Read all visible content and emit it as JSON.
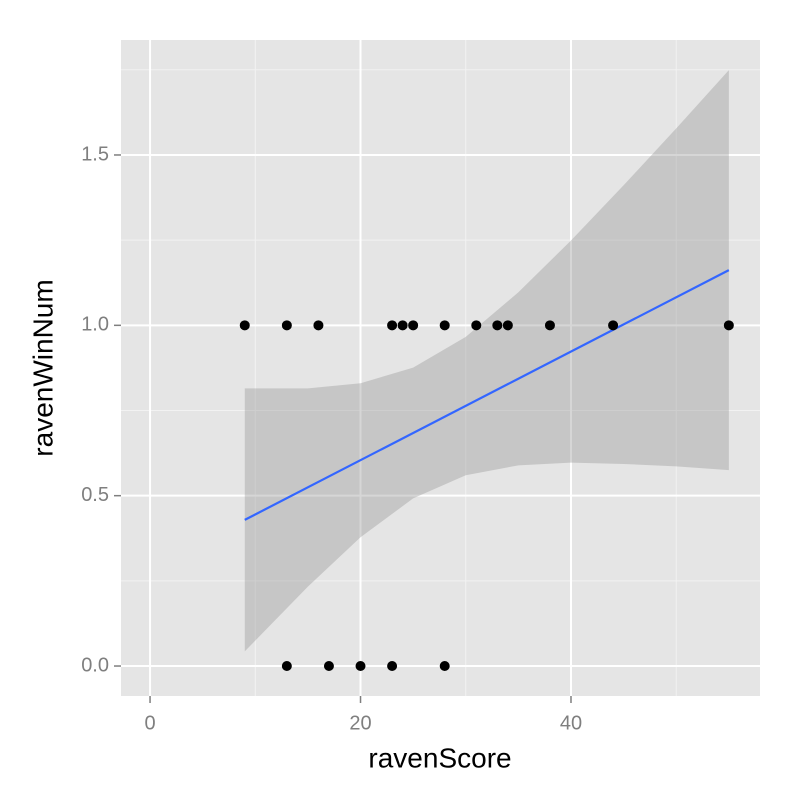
{
  "chart_data": {
    "type": "scatter",
    "x_label": "ravenScore",
    "y_label": "ravenWinNum",
    "x": [
      9,
      13,
      16,
      23,
      24,
      25,
      28,
      31,
      33,
      34,
      38,
      44,
      55,
      13,
      17,
      20,
      23,
      28
    ],
    "values": [
      1,
      1,
      1,
      1,
      1,
      1,
      1,
      1,
      1,
      1,
      1,
      1,
      1,
      0,
      0,
      0,
      0,
      0
    ],
    "color": "#000000",
    "smooth": {
      "color": "#3366FF",
      "x": [
        9,
        55
      ],
      "values": [
        0.429,
        1.162
      ]
    },
    "band": {
      "color": "#999999",
      "x": [
        9,
        15,
        20,
        25,
        30,
        35,
        40,
        45,
        50,
        55
      ],
      "lower": [
        0.043,
        0.233,
        0.378,
        0.492,
        0.56,
        0.589,
        0.597,
        0.593,
        0.586,
        0.575
      ],
      "upper": [
        0.815,
        0.815,
        0.83,
        0.876,
        0.966,
        1.097,
        1.249,
        1.411,
        1.578,
        1.749
      ]
    },
    "xlim": [
      -2.76,
      57.96
    ],
    "ylim": [
      -0.088,
      1.8375
    ],
    "xticks": [
      0,
      20,
      40
    ],
    "yticks": [
      {
        "value": 0,
        "label": "0.0"
      },
      {
        "value": 0.5,
        "label": "0.5"
      },
      {
        "value": 1,
        "label": "1.0"
      },
      {
        "value": 1.5,
        "label": "1.5"
      }
    ],
    "xminor": [
      10,
      30,
      50
    ],
    "yminor": [
      0.25,
      0.75,
      1.25,
      1.75
    ],
    "grid": true
  }
}
